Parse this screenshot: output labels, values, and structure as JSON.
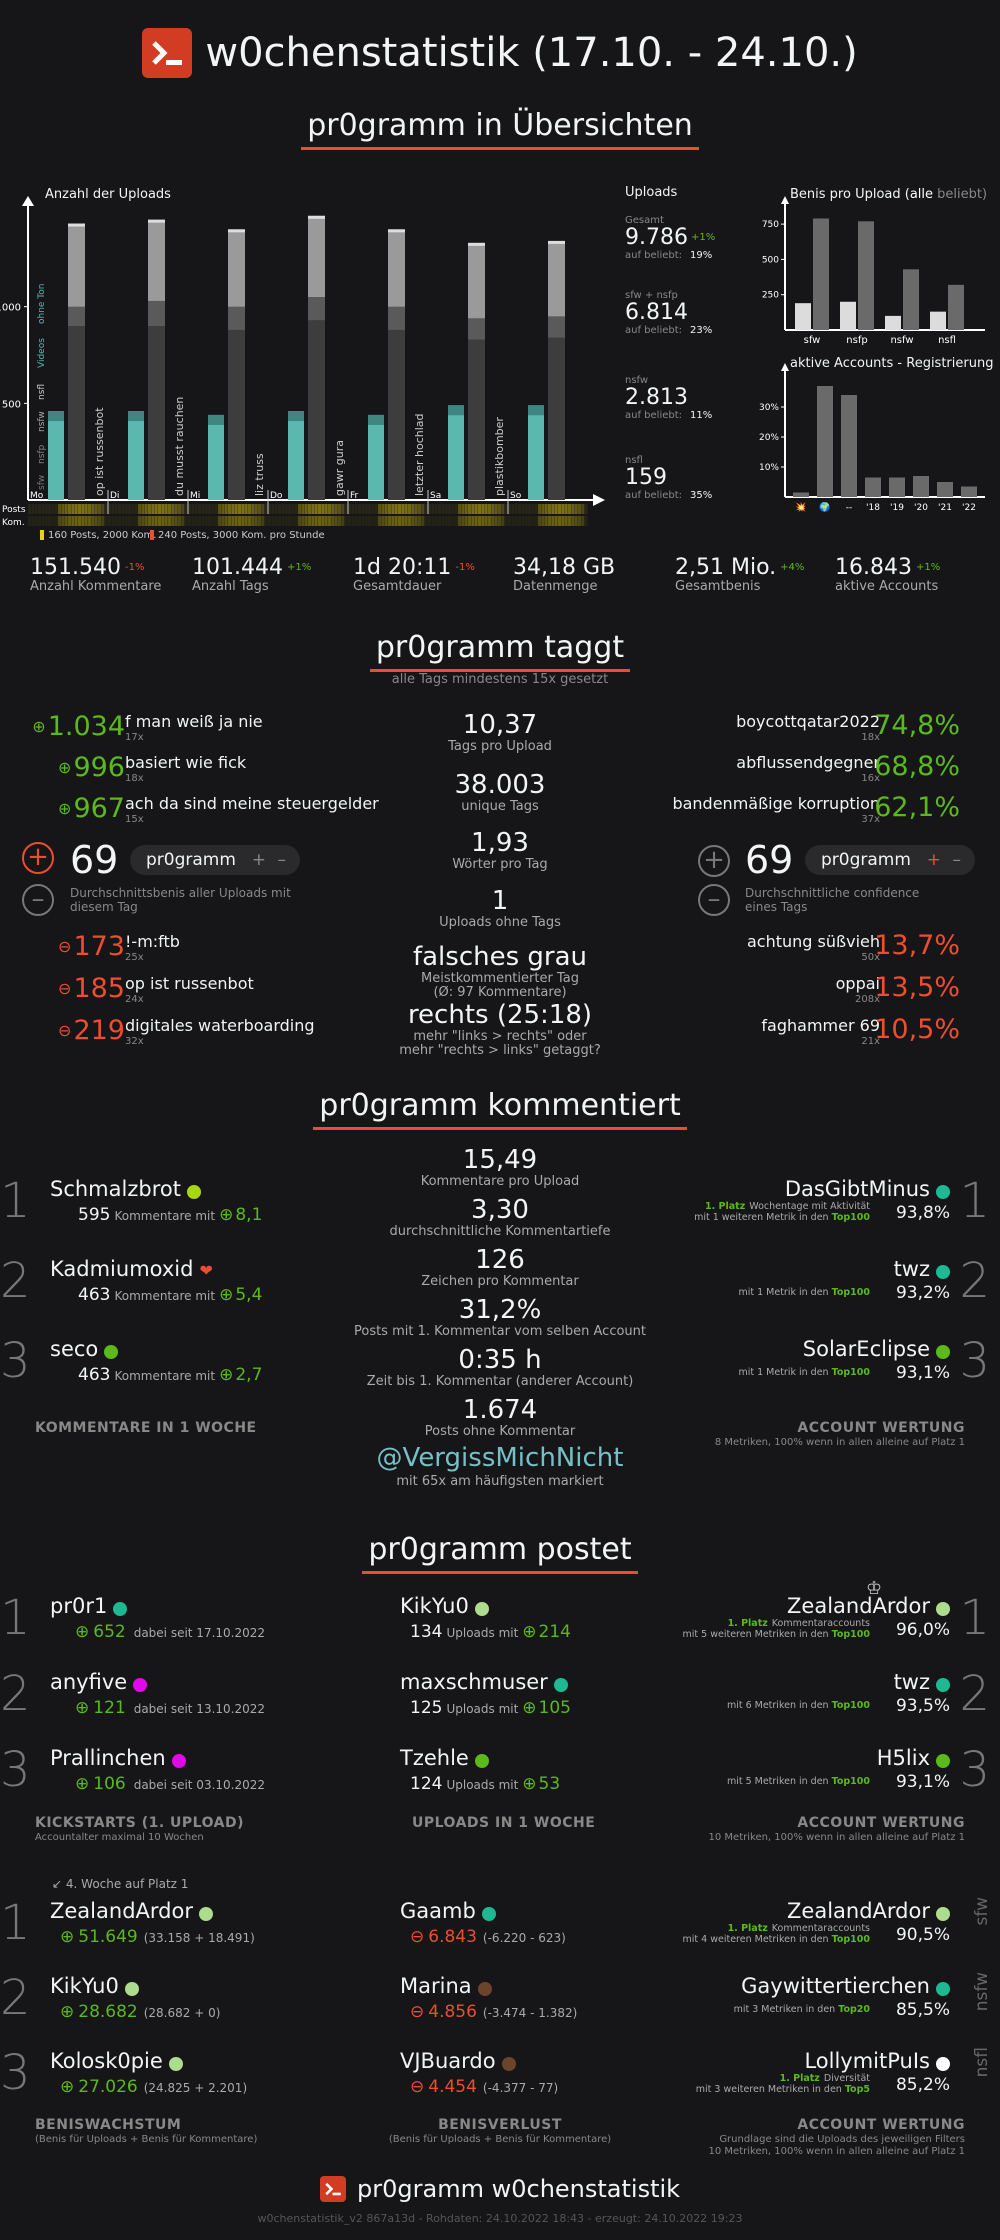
{
  "header": {
    "title": "w0chenstatistik (17.10. - 24.10.)",
    "logo_icon": "pr0gramm-logo-icon"
  },
  "overview": {
    "title": "pr0gramm in Übersichten",
    "chart_title": "Anzahl der Uploads",
    "y_ticks": [
      "1000",
      "500"
    ],
    "days": [
      "Mo",
      "Di",
      "Mi",
      "Do",
      "Fr",
      "Sa",
      "So"
    ],
    "rotated_labels": [
      "op ist russenbot",
      "du musst rauchen",
      "liz truss",
      "gawr gura",
      "letzter hochlad",
      "plastikbomber"
    ],
    "legend_vertical": [
      "sfw",
      "nsfp",
      "nsfw",
      "nsfl",
      "Videos",
      "ohne Ton"
    ],
    "posts_label": "Posts",
    "kom_label": "Kom.",
    "legend_yellow": "160 Posts, 2000 Kom.",
    "legend_red": "240 Posts, 3000 Kom. pro Stunde",
    "uploads_title": "Uploads",
    "uploads": [
      {
        "label": "Gesamt",
        "value": "9.786",
        "delta": "+1%",
        "beliebt": "19%"
      },
      {
        "label": "sfw + nsfp",
        "value": "6.814",
        "delta": "",
        "beliebt": "23%"
      },
      {
        "label": "nsfw",
        "value": "2.813",
        "delta": "",
        "beliebt": "11%"
      },
      {
        "label": "nsfl",
        "value": "159",
        "delta": "",
        "beliebt": "35%"
      }
    ],
    "auf_beliebt": "auf beliebt:",
    "benis_title_a": "Benis pro Upload (",
    "benis_title_b": "alle",
    "benis_title_c": " beliebt)",
    "benis_ticks": [
      "750",
      "500",
      "250"
    ],
    "benis_cats": [
      "sfw",
      "nsfp",
      "nsfw",
      "nsfl"
    ],
    "accounts_title": "aktive Accounts - Registrierung",
    "accounts_ticks": [
      "30%",
      "20%",
      "10%"
    ],
    "accounts_cats": [
      "💥",
      "🌍",
      "--",
      "'18",
      "'19",
      "'20",
      "'21",
      "'22"
    ],
    "stats": [
      {
        "value": "151.540",
        "delta": "-1%",
        "delta_color": "red",
        "label": "Anzahl Kommentare"
      },
      {
        "value": "101.444",
        "delta": "+1%",
        "delta_color": "green",
        "label": "Anzahl Tags"
      },
      {
        "value": "1d 20:11",
        "delta": "-1%",
        "delta_color": "red",
        "label": "Gesamtdauer"
      },
      {
        "value": "34,18 GB",
        "delta": "",
        "delta_color": "green",
        "label": "Datenmenge"
      },
      {
        "value": "2,51 Mio.",
        "delta": "+4%",
        "delta_color": "green",
        "label": "Gesamtbenis"
      },
      {
        "value": "16.843",
        "delta": "+1%",
        "delta_color": "green",
        "label": "aktive Accounts"
      }
    ]
  },
  "chart_data": [
    {
      "type": "bar",
      "title": "Anzahl der Uploads",
      "categories": [
        "Mo",
        "Di",
        "Mi",
        "Do",
        "Fr",
        "Sa",
        "So"
      ],
      "ylim": [
        0,
        1500
      ],
      "series": [
        {
          "name": "sfw",
          "values": [
            1430,
            1450,
            1400,
            1470,
            1400,
            1330,
            1340
          ]
        },
        {
          "name": "nsfw",
          "values": [
            1000,
            1030,
            1000,
            1050,
            1000,
            940,
            950
          ]
        },
        {
          "name": "nsfl",
          "values": [
            900,
            900,
            880,
            930,
            880,
            830,
            840
          ]
        },
        {
          "name": "Videos",
          "values": [
            460,
            460,
            440,
            460,
            440,
            490,
            490
          ]
        }
      ]
    },
    {
      "type": "bar",
      "title": "Benis pro Upload",
      "categories": [
        "sfw",
        "nsfp",
        "nsfw",
        "nsfl"
      ],
      "ylim": [
        0,
        850
      ],
      "series": [
        {
          "name": "alle",
          "values": [
            190,
            200,
            100,
            130
          ]
        },
        {
          "name": "beliebt",
          "values": [
            790,
            770,
            430,
            320
          ]
        }
      ]
    },
    {
      "type": "bar",
      "title": "aktive Accounts - Registrierung",
      "categories": [
        "💥",
        "🌍",
        "--",
        "'18",
        "'19",
        "'20",
        "'21",
        "'22"
      ],
      "ylim": [
        0,
        40
      ],
      "values": [
        1.5,
        37,
        34,
        6.5,
        6.5,
        7,
        5,
        3.5
      ]
    }
  ],
  "tags": {
    "title": "pr0gramm taggt",
    "subtitle": "alle Tags mindestens 15x gesetzt",
    "top_benis": [
      {
        "benis": "1.034",
        "tag": "f man weiß ja nie",
        "count": "17x"
      },
      {
        "benis": "996",
        "tag": "basiert wie fick",
        "count": "18x"
      },
      {
        "benis": "967",
        "tag": "ach da sind meine steuergelder",
        "count": "15x"
      }
    ],
    "low_benis": [
      {
        "benis": "173",
        "tag": "!-m:ftb",
        "count": "25x"
      },
      {
        "benis": "185",
        "tag": "op ist russenbot",
        "count": "24x"
      },
      {
        "benis": "219",
        "tag": "digitales waterboarding",
        "count": "32x"
      }
    ],
    "top_conf": [
      {
        "tag": "boycottqatar2022",
        "count": "18x",
        "pct": "74,8%"
      },
      {
        "tag": "abflussendgegner",
        "count": "16x",
        "pct": "68,8%"
      },
      {
        "tag": "bandenmäßige korruption",
        "count": "37x",
        "pct": "62,1%"
      }
    ],
    "low_conf": [
      {
        "tag": "achtung süßvieh",
        "count": "50x",
        "pct": "13,7%"
      },
      {
        "tag": "oppai",
        "count": "208x",
        "pct": "13,5%"
      },
      {
        "tag": "faghammer 69",
        "count": "21x",
        "pct": "10,5%"
      }
    ],
    "left_num": "69",
    "left_pill": "pr0gramm",
    "left_desc": "Durchschnittsbenis aller Uploads mit diesem Tag",
    "right_num": "69",
    "right_pill": "pr0gramm",
    "right_desc": "Durchschnittliche confidence eines Tags",
    "center": [
      {
        "value": "10,37",
        "label": "Tags pro Upload"
      },
      {
        "value": "38.003",
        "label": "unique Tags"
      },
      {
        "value": "1,93",
        "label": "Wörter pro Tag"
      },
      {
        "value": "1",
        "label": "Uploads ohne Tags"
      },
      {
        "value": "falsches grau",
        "label": "Meistkommentierter Tag",
        "label2": "(Ø: 97 Kommentare)"
      },
      {
        "value": "rechts (25:18)",
        "label": "mehr \"links > rechts\" oder",
        "label2": "mehr \"rechts > links\" getaggt?"
      }
    ]
  },
  "comments": {
    "title": "pr0gramm kommentiert",
    "left": [
      {
        "rank": "1",
        "name": "Schmalzbrot",
        "color": "#a7d713",
        "count": "595",
        "benis": "8,1"
      },
      {
        "rank": "2",
        "name": "Kadmiumoxid",
        "color": "heart",
        "count": "463",
        "benis": "5,4"
      },
      {
        "rank": "3",
        "name": "seco",
        "color": "#5bb91c",
        "count": "463",
        "benis": "2,7"
      }
    ],
    "kommentare_mit": "Kommentare mit",
    "left_footer": "KOMMENTARE IN 1 WOCHE",
    "right": [
      {
        "rank": "1",
        "name": "DasGibtMinus",
        "color": "#1cb992",
        "platz": "1. Platz",
        "line1": "Wochentage mit Aktivität",
        "line2a": "mit 1 weiteren Metrik in den ",
        "top": "Top100",
        "pct": "93,8%"
      },
      {
        "rank": "2",
        "name": "twz",
        "color": "#1cb992",
        "platz": "",
        "line1": "",
        "line2a": "mit 1 Metrik in den ",
        "top": "Top100",
        "pct": "93,2%"
      },
      {
        "rank": "3",
        "name": "SolarEclipse",
        "color": "#5bb91c",
        "platz": "",
        "line1": "",
        "line2a": "mit 1 Metrik in den ",
        "top": "Top100",
        "pct": "93,1%"
      }
    ],
    "right_footer": "ACCOUNT WERTUNG",
    "right_footer_sub": "8 Metriken, 100% wenn in allen alleine auf Platz 1",
    "center": [
      {
        "value": "15,49",
        "label": "Kommentare pro Upload"
      },
      {
        "value": "3,30",
        "label": "durchschnittliche Kommentartiefe"
      },
      {
        "value": "126",
        "label": "Zeichen pro Kommentar"
      },
      {
        "value": "31,2%",
        "label": "Posts mit 1. Kommentar vom selben Account"
      },
      {
        "value": "0:35 h",
        "label": "Zeit bis 1. Kommentar (anderer Account)"
      },
      {
        "value": "1.674",
        "label": "Posts ohne Kommentar"
      }
    ],
    "mention": "@VergissMichNicht",
    "mention_label": "mit 65x am häufigsten markiert"
  },
  "posts": {
    "title": "pr0gramm postet",
    "kick": [
      {
        "rank": "1",
        "name": "pr0r1",
        "color": "#1cb992",
        "benis": "652",
        "since": "dabei seit 17.10.2022"
      },
      {
        "rank": "2",
        "name": "anyfive",
        "color": "#e108e9",
        "benis": "121",
        "since": "dabei seit 13.10.2022"
      },
      {
        "rank": "3",
        "name": "Prallinchen",
        "color": "#e108e9",
        "benis": "106",
        "since": "dabei seit 03.10.2022"
      }
    ],
    "kick_footer": "KICKSTARTS (1. UPLOAD)",
    "kick_footer_sub": "Accountalter maximal 10 Wochen",
    "uploads": [
      {
        "name": "KikYu0",
        "color": "#addc8d",
        "count": "134",
        "benis": "214"
      },
      {
        "name": "maxschmuser",
        "color": "#1cb992",
        "count": "125",
        "benis": "105"
      },
      {
        "name": "Tzehle",
        "color": "#5bb91c",
        "count": "124",
        "benis": "53"
      }
    ],
    "uploads_mit": "Uploads mit",
    "uploads_footer": "UPLOADS IN 1 WOCHE",
    "rating": [
      {
        "rank": "1",
        "name": "ZealandArdor",
        "color": "#addc8d",
        "platz": "1. Platz",
        "line1": "Kommentaraccounts",
        "line2a": "mit 5 weiteren Metriken in den ",
        "top": "Top100",
        "pct": "96,0%"
      },
      {
        "rank": "2",
        "name": "twz",
        "color": "#1cb992",
        "platz": "",
        "line1": "",
        "line2a": "mit 6 Metriken in den ",
        "top": "Top100",
        "pct": "93,5%"
      },
      {
        "rank": "3",
        "name": "H5lix",
        "color": "#5bb91c",
        "platz": "",
        "line1": "",
        "line2a": "mit 5 Metriken in den ",
        "top": "Top100",
        "pct": "93,1%"
      }
    ],
    "rating_footer": "ACCOUNT WERTUNG",
    "rating_footer_sub": "10 Metriken, 100% wenn in allen alleine auf Platz 1",
    "growth_note": "4. Woche auf Platz 1",
    "growth": [
      {
        "rank": "1",
        "name": "ZealandArdor",
        "color": "#addc8d",
        "benis": "51.649",
        "detail": "(33.158 + 18.491)"
      },
      {
        "rank": "2",
        "name": "KikYu0",
        "color": "#addc8d",
        "benis": "28.682",
        "detail": "(28.682 + 0)"
      },
      {
        "rank": "3",
        "name": "Kolosk0pie",
        "color": "#addc8d",
        "benis": "27.026",
        "detail": "(24.825 + 2.201)"
      }
    ],
    "growth_footer": "BENISWACHSTUM",
    "growth_footer_sub": "(Benis für Uploads + Benis für Kommentare)",
    "loss": [
      {
        "name": "Gaamb",
        "color": "#1cb992",
        "benis": "6.843",
        "detail": "(-6.220 - 623)"
      },
      {
        "name": "Marina",
        "color": "#6c432b",
        "benis": "4.856",
        "detail": "(-3.474 - 1.382)"
      },
      {
        "name": "VJBuardo",
        "color": "#6c432b",
        "benis": "4.454",
        "detail": "(-4.377 - 77)"
      }
    ],
    "loss_footer": "BENISVERLUST",
    "loss_footer_sub": "(Benis für Uploads + Benis für Kommentare)",
    "filter": [
      {
        "name": "ZealandArdor",
        "color": "#addc8d",
        "platz": "1. Platz",
        "line1": "Kommentaraccounts",
        "line2a": "mit 4 weiteren Metriken in den ",
        "top": "Top100",
        "pct": "90,5%",
        "side": "sfw"
      },
      {
        "name": "Gaywittertierchen",
        "color": "#1cb992",
        "platz": "",
        "line1": "",
        "line2a": "mit 3 Metriken in den ",
        "top": "Top20",
        "pct": "85,5%",
        "side": "nsfw"
      },
      {
        "name": "LollymitPuIs",
        "color": "#ffffff",
        "platz": "1. Platz",
        "line1": "Diversität",
        "line2a": "mit 3 weiteren Metriken in den ",
        "top": "Top5",
        "pct": "85,2%",
        "side": "nsfl"
      }
    ],
    "filter_footer": "ACCOUNT WERTUNG",
    "filter_footer_sub1": "Grundlage sind die Uploads des jeweiligen Filters",
    "filter_footer_sub2": "10 Metriken, 100% wenn in allen alleine auf Platz 1"
  },
  "footer": {
    "title": "pr0gramm w0chenstatistik",
    "meta": "w0chenstatistik_v2 867a13d - Rohdaten: 24.10.2022 18:43 - erzeugt: 24.10.2022 19:23"
  }
}
